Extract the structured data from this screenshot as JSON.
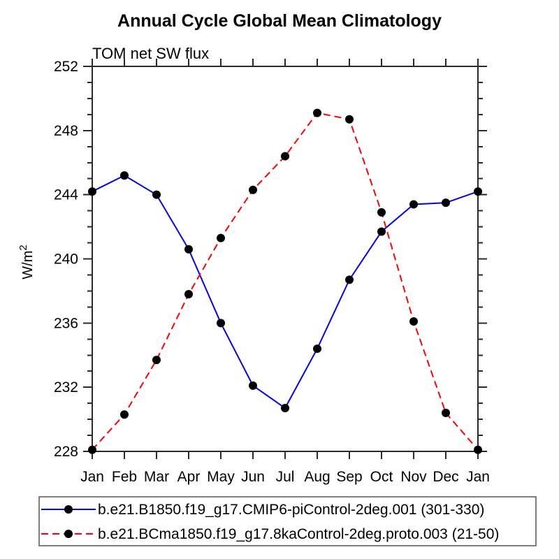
{
  "chart_data": {
    "type": "line",
    "title": "Annual Cycle Global Mean Climatology",
    "subtitle": "TOM net SW flux",
    "ylabel": "W/m²",
    "ylabel_parts": {
      "base": "W/m",
      "superscript": "2"
    },
    "xlabel": "",
    "x_categories": [
      "Jan",
      "Feb",
      "Mar",
      "Apr",
      "May",
      "Jun",
      "Jul",
      "Aug",
      "Sep",
      "Oct",
      "Nov",
      "Dec",
      "Jan"
    ],
    "ylim": [
      228,
      252
    ],
    "y_major_step": 4,
    "y_minor_step": 1,
    "y_major_ticks": [
      228,
      232,
      236,
      240,
      244,
      248,
      252
    ],
    "grid": false,
    "legend_position": "bottom",
    "axis_color": "#2a2a2a",
    "marker_color": "#000000",
    "series": [
      {
        "name": "b.e21.B1850.f19_g17.CMIP6-piControl-2deg.001 (301-330)",
        "color": "#0000ff",
        "style": "solid",
        "marker": "filled-circle",
        "values": [
          244.2,
          245.2,
          244.0,
          240.6,
          236.0,
          232.1,
          230.7,
          234.4,
          238.7,
          241.7,
          243.4,
          243.5,
          244.2
        ]
      },
      {
        "name": "b.e21.BCma1850.f19_g17.8kaControl-2deg.proto.003 (21-50)",
        "color": "#ff0000",
        "style": "dashed",
        "marker": "filled-circle",
        "values": [
          228.1,
          230.3,
          233.7,
          237.8,
          241.3,
          244.3,
          246.4,
          249.1,
          248.7,
          242.9,
          236.1,
          230.4,
          228.1
        ]
      }
    ]
  }
}
